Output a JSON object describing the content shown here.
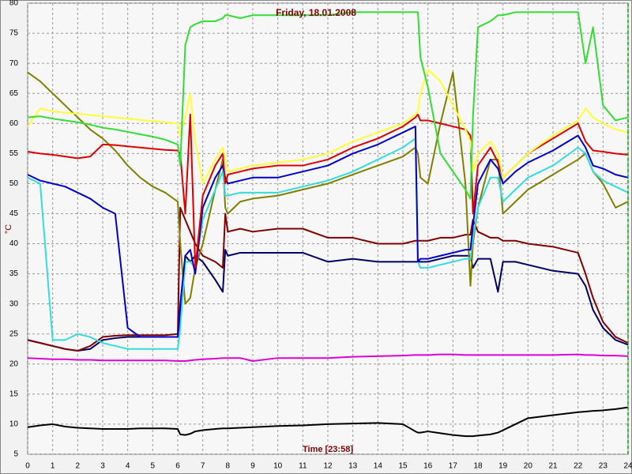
{
  "chart_data": {
    "type": "line",
    "title": "Friday, 18.01.2008",
    "x_label": "Time [23:58]",
    "y_label": "°C",
    "x": [
      0,
      0.5,
      1,
      1.5,
      2,
      2.5,
      3,
      3.5,
      4,
      4.5,
      5,
      5.5,
      6,
      6.1,
      6.3,
      6.5,
      6.7,
      7,
      7.5,
      7.8,
      7.9,
      8,
      8.5,
      9,
      10,
      11,
      12,
      13,
      14,
      15,
      15.5,
      15.6,
      15.7,
      16,
      16.5,
      17,
      17.5,
      17.7,
      17.8,
      18,
      18.5,
      18.8,
      19,
      19.5,
      20,
      21,
      22,
      22.3,
      22.6,
      23,
      23.5,
      24
    ],
    "xlim": [
      0,
      24
    ],
    "xticks": [
      0,
      1,
      2,
      3,
      4,
      5,
      6,
      7,
      8,
      9,
      10,
      11,
      12,
      13,
      14,
      15,
      16,
      17,
      18,
      19,
      20,
      21,
      22,
      23,
      24
    ],
    "ylim": [
      5,
      80
    ],
    "yticks": [
      5,
      10,
      15,
      20,
      25,
      30,
      35,
      40,
      45,
      50,
      55,
      60,
      65,
      70,
      75,
      80
    ],
    "grid": true,
    "series": [
      {
        "color": "#000000",
        "values": [
          9.5,
          9.8,
          10,
          9.6,
          9.4,
          9.3,
          9.2,
          9.2,
          9.2,
          9.3,
          9.3,
          9.3,
          9.2,
          8.3,
          8.2,
          8.4,
          8.8,
          9,
          9.2,
          9.3,
          9.3,
          9.3,
          9.4,
          9.5,
          9.7,
          9.8,
          10,
          10.1,
          10.2,
          10,
          8.8,
          8.6,
          8.6,
          8.8,
          8.5,
          8.2,
          8,
          8,
          8,
          8.1,
          8.3,
          8.6,
          9,
          10,
          11,
          11.5,
          12,
          12.1,
          12.2,
          12.3,
          12.5,
          12.8
        ]
      },
      {
        "color": "#dd00dd",
        "values": [
          21,
          20.9,
          20.8,
          20.8,
          20.7,
          20.7,
          20.6,
          20.6,
          20.6,
          20.6,
          20.6,
          20.6,
          20.5,
          20.5,
          20.5,
          20.6,
          20.7,
          20.8,
          20.9,
          21,
          21,
          21,
          21,
          20.5,
          21,
          21,
          21,
          21.2,
          21.3,
          21.4,
          21.5,
          21.5,
          21.5,
          21.5,
          21.6,
          21.6,
          21.5,
          21.5,
          21.5,
          21.5,
          21.5,
          21.5,
          21.5,
          21.5,
          21.5,
          21.5,
          21.6,
          21.5,
          21.5,
          21.4,
          21.4,
          21.3
        ]
      },
      {
        "color": "#000066",
        "values": [
          24,
          23.5,
          23,
          22.5,
          22.2,
          22.5,
          24,
          24.3,
          24.5,
          24.5,
          24.5,
          24.5,
          24.5,
          28,
          38,
          37,
          38,
          37,
          34,
          32,
          39,
          38,
          38.5,
          38.5,
          38.5,
          38.5,
          37,
          37.5,
          37,
          37,
          37,
          37,
          37,
          37,
          37.5,
          38,
          38,
          38,
          36,
          37.5,
          37.5,
          32,
          37,
          37,
          36.5,
          35.5,
          35,
          33,
          29,
          26,
          24,
          23.2
        ]
      },
      {
        "color": "#800000",
        "values": [
          24,
          23.5,
          23,
          22.5,
          22.2,
          23,
          24.5,
          24.7,
          24.8,
          24.8,
          24.8,
          24.8,
          25,
          46,
          44,
          42,
          40,
          38,
          37,
          36,
          45,
          42,
          42.5,
          42,
          42.5,
          42.5,
          41,
          41,
          40,
          40,
          40.5,
          40.5,
          40.5,
          40.5,
          41,
          41,
          41.5,
          41.5,
          44,
          42,
          41,
          41,
          40.5,
          40.5,
          40,
          39.5,
          38.5,
          35,
          31,
          27,
          24.5,
          23.5
        ]
      },
      {
        "color": "#808000",
        "values": [
          68.5,
          67,
          65,
          63,
          61,
          59,
          57.5,
          55.5,
          53,
          51,
          49.5,
          48.5,
          47,
          40,
          30,
          31,
          36,
          40,
          49,
          54,
          46,
          45,
          47,
          47.5,
          48,
          49,
          50,
          51.5,
          53,
          54.5,
          56,
          55,
          51,
          50,
          60,
          68.5,
          50,
          33,
          40,
          46,
          54,
          54,
          45,
          47,
          49,
          51.5,
          54,
          55,
          52,
          50,
          46,
          47
        ]
      },
      {
        "color": "#33dddd",
        "values": [
          51,
          50,
          24,
          24,
          25,
          24.5,
          23.5,
          23,
          22.5,
          22.5,
          22.5,
          22.5,
          22.5,
          26,
          37,
          37,
          36,
          44,
          49,
          52,
          48,
          48,
          48.5,
          48.5,
          48.5,
          49.5,
          50.5,
          52,
          54,
          56,
          57.5,
          37,
          36,
          36,
          36.5,
          37,
          37.5,
          37.5,
          41,
          46,
          51,
          51,
          47,
          49,
          51,
          53,
          56,
          55,
          52,
          50.5,
          49.5,
          48.5
        ]
      },
      {
        "color": "#0000cc",
        "values": [
          51.5,
          50.5,
          50,
          49.5,
          48.5,
          47.5,
          46,
          45,
          26,
          24.5,
          24.5,
          24.5,
          24.5,
          30,
          38,
          39,
          35,
          46,
          51,
          53,
          51,
          50,
          50.5,
          51,
          51,
          52,
          53,
          55,
          56.5,
          58.5,
          59.5,
          37,
          37.5,
          37.5,
          38,
          38.5,
          39,
          39,
          43,
          50,
          54,
          52.5,
          50,
          52,
          53.5,
          55.5,
          58,
          56,
          53,
          52.5,
          51.5,
          51
        ]
      },
      {
        "color": "#dd0000",
        "values": [
          55.3,
          55,
          54.8,
          54.5,
          54.2,
          54.5,
          56.5,
          56.4,
          56.2,
          56,
          55.8,
          55.6,
          55.5,
          55,
          45,
          61.5,
          36,
          48,
          53,
          55,
          50,
          51.5,
          52,
          52.5,
          53,
          53,
          54,
          56,
          57.5,
          59.5,
          61,
          61.5,
          60.5,
          60.5,
          60,
          59.5,
          59,
          58,
          45,
          53,
          56,
          53.5,
          51,
          53,
          55,
          57.5,
          60,
          57,
          55.5,
          55.3,
          55,
          54.8
        ]
      },
      {
        "color": "#ffff33",
        "values": [
          59.5,
          62.5,
          62,
          61.8,
          61.6,
          61.4,
          61.2,
          61,
          60.8,
          60.6,
          60.4,
          60.2,
          60,
          58,
          61,
          65,
          57,
          50,
          54,
          56,
          54,
          52,
          52.5,
          53,
          53.5,
          54,
          55,
          57,
          58.5,
          60,
          61.5,
          62,
          65,
          69,
          67,
          63,
          59,
          57,
          52,
          55,
          57,
          55,
          51,
          53,
          55,
          58,
          60.5,
          62.5,
          61,
          60,
          59,
          58.5
        ]
      },
      {
        "color": "#33dd33",
        "values": [
          61,
          61.2,
          60.8,
          60.5,
          60.2,
          59.8,
          59.3,
          59,
          58.6,
          58.2,
          57.8,
          57.3,
          56.5,
          53,
          73,
          76,
          76.5,
          77,
          77,
          77.5,
          78,
          78,
          77.5,
          78,
          78,
          78,
          78,
          78.5,
          78.5,
          78.5,
          78.5,
          78.5,
          71,
          66,
          55,
          52,
          49,
          47.5,
          61,
          76,
          77,
          78,
          78,
          78.5,
          78.5,
          78.5,
          78.5,
          70,
          76,
          63,
          60.5,
          61
        ]
      }
    ]
  }
}
